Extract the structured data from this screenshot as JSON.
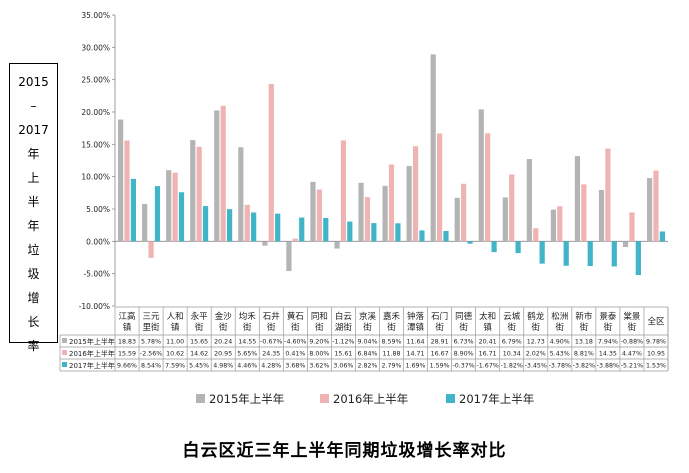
{
  "page": {
    "ylabel_text": "2015\n–\n2017\n年\n上\n半\n年\n垃\n圾\n增\n长\n率",
    "caption": "白云区近三年上半年同期垃圾增长率对比"
  },
  "chart_data": {
    "type": "bar",
    "ylabel": "2015–2017年上半年垃圾增长率",
    "ylim": [
      -10,
      35
    ],
    "y_ticks": [
      "-10.00%",
      "-5.00%",
      "0.00%",
      "5.00%",
      "10.00%",
      "15.00%",
      "20.00%",
      "25.00%",
      "30.00%",
      "35.00%"
    ],
    "grid": false,
    "legend_position": "bottom",
    "categories": [
      "江高镇",
      "三元里街",
      "人和镇",
      "永平街",
      "金沙街",
      "均禾街",
      "石井街",
      "黄石街",
      "同和街",
      "白云湖街",
      "京溪街",
      "嘉禾街",
      "钟落潭镇",
      "石门街",
      "同德街",
      "太和镇",
      "云城街",
      "鹤龙街",
      "松洲街",
      "新市街",
      "景泰街",
      "棠景街",
      "全区"
    ],
    "series": [
      {
        "name": "2015年上半年",
        "color": "#b4b4b4",
        "values": [
          18.83,
          5.78,
          11.0,
          15.65,
          20.24,
          14.55,
          -0.67,
          -4.6,
          9.2,
          -1.12,
          9.04,
          8.59,
          11.64,
          28.91,
          6.73,
          20.41,
          6.79,
          12.73,
          4.9,
          13.18,
          7.94,
          -0.88,
          9.78
        ],
        "labels": [
          "18.83",
          "5.78%",
          "11.00",
          "15.65",
          "20.24",
          "14.55",
          "-0.67%",
          "-4.60%",
          "9.20%",
          "-1.12%",
          "9.04%",
          "8.59%",
          "11.64",
          "28.91",
          "6.73%",
          "20.41",
          "6.79%",
          "12.73",
          "4.90%",
          "13.18",
          "7.94%",
          "-0.88%",
          "9.78%"
        ]
      },
      {
        "name": "2016年上半年",
        "color": "#eeb4b4",
        "values": [
          15.59,
          -2.56,
          10.62,
          14.62,
          20.95,
          5.65,
          24.35,
          0.41,
          8.0,
          15.61,
          6.84,
          11.88,
          14.71,
          16.67,
          8.9,
          16.71,
          10.34,
          2.02,
          5.43,
          8.81,
          14.35,
          4.47,
          10.95
        ],
        "labels": [
          "15.59",
          "-2.56%",
          "10.62",
          "14.62",
          "20.95",
          "5.65%",
          "24.35",
          "0.41%",
          "8.00%",
          "15.61",
          "6.84%",
          "11.88",
          "14.71",
          "16.67",
          "8.90%",
          "16.71",
          "10.34",
          "2.02%",
          "5.43%",
          "8.81%",
          "14.35",
          "4.47%",
          "10.95"
        ]
      },
      {
        "name": "2017年上半年",
        "color": "#41b4c8",
        "values": [
          9.66,
          8.54,
          7.59,
          5.45,
          4.98,
          4.46,
          4.28,
          3.68,
          3.62,
          3.06,
          2.82,
          2.79,
          1.69,
          1.59,
          -0.37,
          -1.67,
          -1.82,
          -3.45,
          -3.78,
          -3.82,
          -3.88,
          -5.21,
          1.53
        ],
        "labels": [
          "9.66%",
          "8.54%",
          "7.59%",
          "5.45%",
          "4.98%",
          "4.46%",
          "4.28%",
          "3.68%",
          "3.62%",
          "3.06%",
          "2.82%",
          "2.79%",
          "1.69%",
          "1.59%",
          "-0.37%",
          "-1.67%",
          "-1.82%",
          "-3.45%",
          "-3.78%",
          "-3.82%",
          "-3.88%",
          "-5.21%",
          "1.53%"
        ]
      }
    ]
  }
}
